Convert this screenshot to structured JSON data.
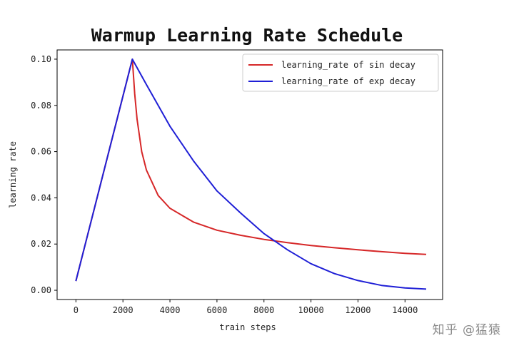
{
  "chart_data": {
    "type": "line",
    "title": "Warmup Learning Rate Schedule",
    "xlabel": "train steps",
    "ylabel": "learning rate",
    "xlim": [
      -800,
      15600
    ],
    "ylim": [
      -0.004,
      0.104
    ],
    "xticks": [
      0,
      2000,
      4000,
      6000,
      8000,
      10000,
      12000,
      14000
    ],
    "yticks": [
      0.0,
      0.02,
      0.04,
      0.06,
      0.08,
      0.1
    ],
    "xtick_labels": [
      "0",
      "2000",
      "4000",
      "6000",
      "8000",
      "10000",
      "12000",
      "14000"
    ],
    "ytick_labels": [
      "0.00",
      "0.02",
      "0.04",
      "0.06",
      "0.08",
      "0.10"
    ],
    "grid": false,
    "legend_position": "top-right",
    "series": [
      {
        "name": "learning_rate of sin decay",
        "color": "#d62728",
        "x": [
          0,
          2400,
          2500,
          2600,
          2800,
          3000,
          3500,
          4000,
          5000,
          6000,
          7000,
          8000,
          9000,
          10000,
          11000,
          12000,
          13000,
          14000,
          14900
        ],
        "y": [
          0.004,
          0.1,
          0.085,
          0.074,
          0.06,
          0.052,
          0.041,
          0.0355,
          0.0295,
          0.026,
          0.0238,
          0.022,
          0.0206,
          0.0194,
          0.0184,
          0.0175,
          0.0167,
          0.016,
          0.0155
        ]
      },
      {
        "name": "learning_rate of exp decay",
        "color": "#1f1fd6",
        "x": [
          0,
          2400,
          3000,
          4000,
          5000,
          6000,
          7000,
          8000,
          9000,
          10000,
          11000,
          12000,
          13000,
          14000,
          14900
        ],
        "y": [
          0.004,
          0.1,
          0.089,
          0.071,
          0.056,
          0.043,
          0.0335,
          0.0245,
          0.0175,
          0.0115,
          0.0072,
          0.0042,
          0.0021,
          0.001,
          0.0005
        ]
      }
    ]
  },
  "watermark": "知乎 @猛猿"
}
